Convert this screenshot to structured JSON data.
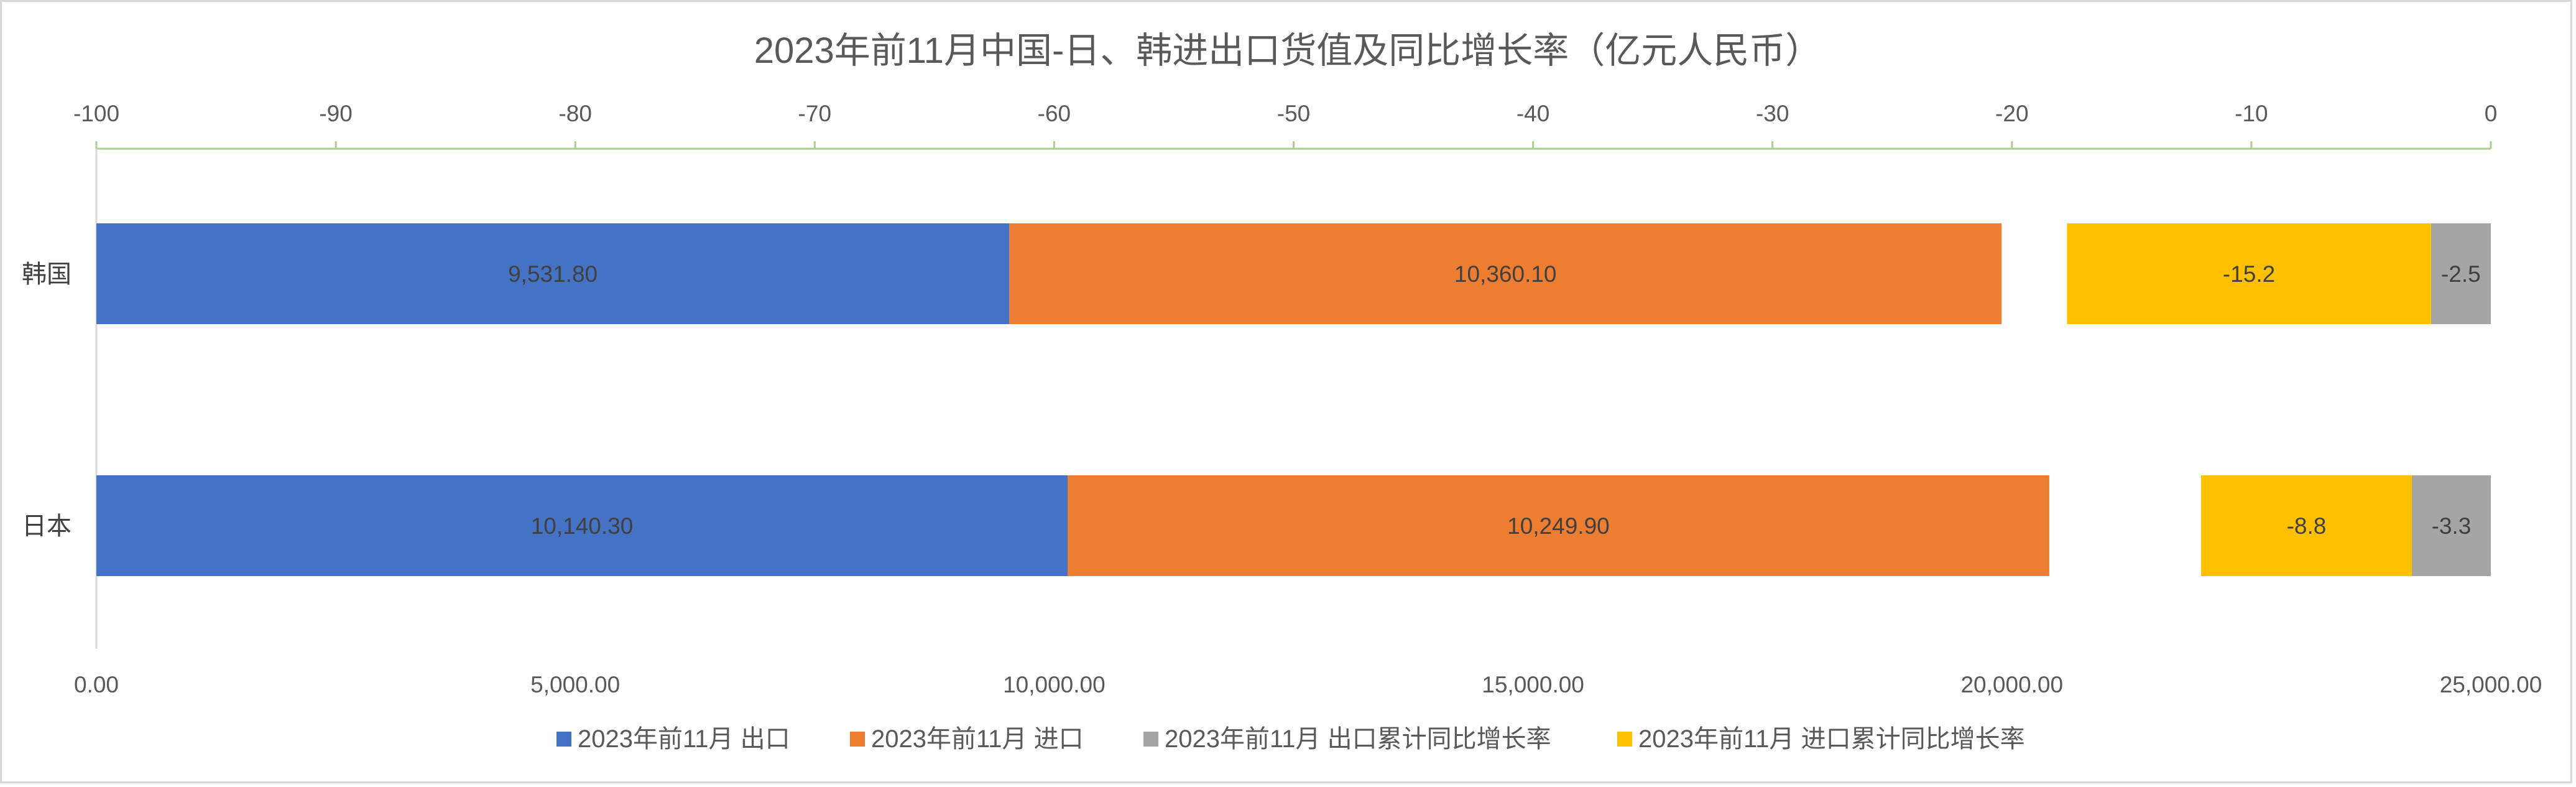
{
  "chart_data": {
    "type": "bar",
    "orientation": "horizontal",
    "stacked": true,
    "title": "2023年前11月中国-日、韩进出口货值及同比增长率（亿元人民币）",
    "categories": [
      "韩国",
      "日本"
    ],
    "primary_axis": {
      "position": "bottom",
      "range": [
        0,
        25000
      ],
      "ticks": [
        "0.00",
        "5,000.00",
        "10,000.00",
        "15,000.00",
        "20,000.00",
        "25,000.00"
      ]
    },
    "secondary_axis": {
      "position": "top",
      "range": [
        -100,
        0
      ],
      "ticks": [
        "-100",
        "-90",
        "-80",
        "-70",
        "-60",
        "-50",
        "-40",
        "-30",
        "-20",
        "-10",
        "0"
      ]
    },
    "series": [
      {
        "name": "2023年前11月 出口",
        "axis": "primary",
        "color": "#4472C4",
        "values": [
          9531.8,
          10140.3
        ],
        "labels": [
          "9,531.80",
          "10,140.30"
        ]
      },
      {
        "name": "2023年前11月 进口",
        "axis": "primary",
        "color": "#ED7D31",
        "values": [
          10360.1,
          10249.9
        ],
        "labels": [
          "10,360.10",
          "10,249.90"
        ]
      },
      {
        "name": "2023年前11月 出口累计同比增长率",
        "axis": "secondary",
        "color": "#A5A5A5",
        "values": [
          -2.5,
          -3.3
        ],
        "labels": [
          "-2.5",
          "-3.3"
        ]
      },
      {
        "name": "2023年前11月 进口累计同比增长率",
        "axis": "secondary",
        "color": "#FFC000",
        "values": [
          -15.2,
          -8.8
        ],
        "labels": [
          "-15.2",
          "-8.8"
        ]
      }
    ],
    "legend_position": "bottom",
    "grid": false
  }
}
